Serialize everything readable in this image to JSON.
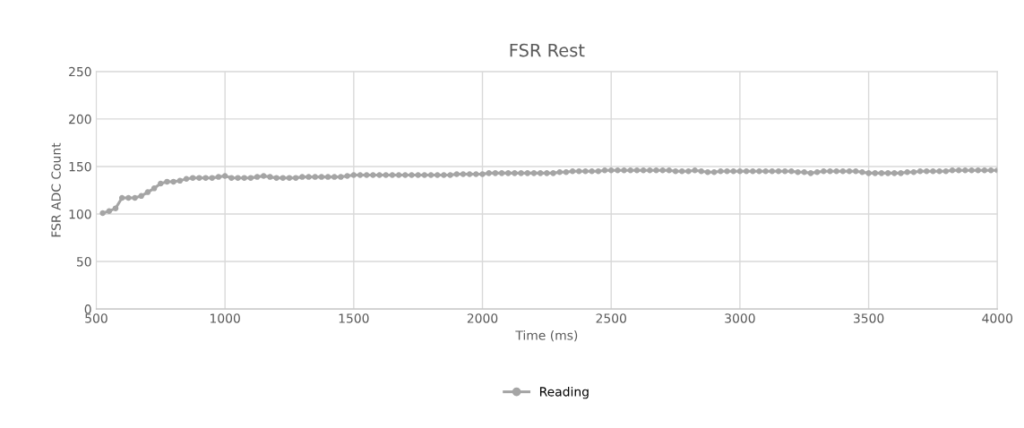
{
  "chart_data": {
    "type": "line",
    "title": "FSR Rest",
    "xlabel": "Time (ms)",
    "ylabel": "FSR ADC Count",
    "x": [
      525,
      550,
      575,
      600,
      625,
      650,
      675,
      700,
      725,
      750,
      775,
      800,
      825,
      850,
      875,
      900,
      925,
      950,
      975,
      1000,
      1025,
      1050,
      1075,
      1100,
      1125,
      1150,
      1175,
      1200,
      1225,
      1250,
      1275,
      1300,
      1325,
      1350,
      1375,
      1400,
      1425,
      1450,
      1475,
      1500,
      1525,
      1550,
      1575,
      1600,
      1625,
      1650,
      1675,
      1700,
      1725,
      1750,
      1775,
      1800,
      1825,
      1850,
      1875,
      1900,
      1925,
      1950,
      1975,
      2000,
      2025,
      2050,
      2075,
      2100,
      2125,
      2150,
      2175,
      2200,
      2225,
      2250,
      2275,
      2300,
      2325,
      2350,
      2375,
      2400,
      2425,
      2450,
      2475,
      2500,
      2525,
      2550,
      2575,
      2600,
      2625,
      2650,
      2675,
      2700,
      2725,
      2750,
      2775,
      2800,
      2825,
      2850,
      2875,
      2900,
      2925,
      2950,
      2975,
      3000,
      3025,
      3050,
      3075,
      3100,
      3125,
      3150,
      3175,
      3200,
      3225,
      3250,
      3275,
      3300,
      3325,
      3350,
      3375,
      3400,
      3425,
      3450,
      3475,
      3500,
      3525,
      3550,
      3575,
      3600,
      3625,
      3650,
      3675,
      3700,
      3725,
      3750,
      3775,
      3800,
      3825,
      3850,
      3875,
      3900,
      3925,
      3950,
      3975,
      4000
    ],
    "series": [
      {
        "name": "Reading",
        "color": "#a5a5a5",
        "values": [
          101,
          103,
          106,
          117,
          117,
          117,
          119,
          123,
          127,
          132,
          134,
          134,
          135,
          137,
          138,
          138,
          138,
          138,
          139,
          140,
          138,
          138,
          138,
          138,
          139,
          140,
          139,
          138,
          138,
          138,
          138,
          139,
          139,
          139,
          139,
          139,
          139,
          139,
          140,
          141,
          141,
          141,
          141,
          141,
          141,
          141,
          141,
          141,
          141,
          141,
          141,
          141,
          141,
          141,
          141,
          142,
          142,
          142,
          142,
          142,
          143,
          143,
          143,
          143,
          143,
          143,
          143,
          143,
          143,
          143,
          143,
          144,
          144,
          145,
          145,
          145,
          145,
          145,
          146,
          146,
          146,
          146,
          146,
          146,
          146,
          146,
          146,
          146,
          146,
          145,
          145,
          145,
          146,
          145,
          144,
          144,
          145,
          145,
          145,
          145,
          145,
          145,
          145,
          145,
          145,
          145,
          145,
          145,
          144,
          144,
          143,
          144,
          145,
          145,
          145,
          145,
          145,
          145,
          144,
          143,
          143,
          143,
          143,
          143,
          143,
          144,
          144,
          145,
          145,
          145,
          145,
          145,
          146,
          146,
          146,
          146,
          146,
          146,
          146,
          146
        ]
      }
    ],
    "xlim": [
      500,
      4000
    ],
    "xticks": [
      500,
      1000,
      1500,
      2000,
      2500,
      3000,
      3500,
      4000
    ],
    "ylim": [
      0,
      250
    ],
    "yticks": [
      0,
      50,
      100,
      150,
      200,
      250
    ],
    "grid": true,
    "legend": "bottom",
    "marker": "circle",
    "line_style": "solid"
  }
}
